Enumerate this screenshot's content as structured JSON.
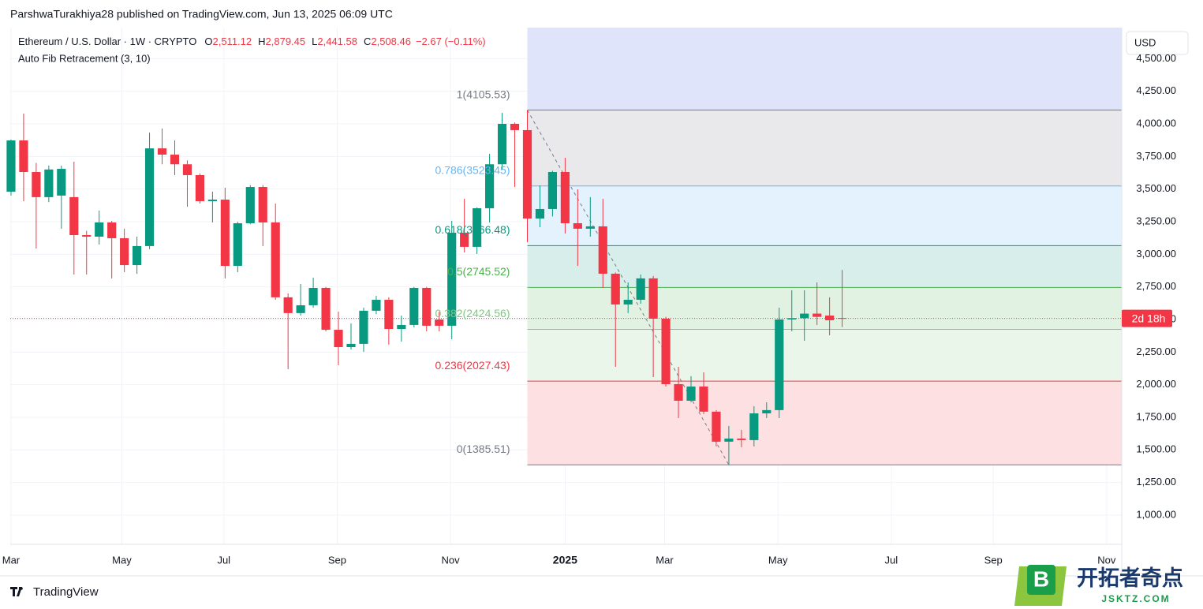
{
  "header": "ParshwaTurakhiya28 published on TradingView.com, Jun 13, 2025 06:09 UTC",
  "chart_data": {
    "type": "candlestick",
    "symbol": "Ethereum / U.S. Dollar · 1W · CRYPTO",
    "ohlc_legend": [
      {
        "key": "O",
        "value": "2,511.12"
      },
      {
        "key": "H",
        "value": "2,879.45"
      },
      {
        "key": "L",
        "value": "2,441.58"
      },
      {
        "key": "C",
        "value": "2,508.46"
      }
    ],
    "change": "−2.67 (−0.11%)",
    "indicator": "Auto Fib Retracement (3, 10)",
    "currency": "USD",
    "countdown": "2d 18h",
    "up_color": "#089981",
    "down_color": "#f23645",
    "grid": true,
    "xlim": [
      -0.06,
      88.2
    ],
    "ylim": [
      776,
      4738
    ],
    "yticks": [
      {
        "value": 1000,
        "label": "1,000.00"
      },
      {
        "value": 1250,
        "label": "1,250.00"
      },
      {
        "value": 1500,
        "label": "1,500.00"
      },
      {
        "value": 1750,
        "label": "1,750.00"
      },
      {
        "value": 2000,
        "label": "2,000.00"
      },
      {
        "value": 2250,
        "label": "2,250.00"
      },
      {
        "value": 2500,
        "label": "2,500.00"
      },
      {
        "value": 2750,
        "label": "2,750.00"
      },
      {
        "value": 3000,
        "label": "3,000.00"
      },
      {
        "value": 3250,
        "label": "3,250.00"
      },
      {
        "value": 3500,
        "label": "3,500.00"
      },
      {
        "value": 3750,
        "label": "3,750.00"
      },
      {
        "value": 4000,
        "label": "4,000.00"
      },
      {
        "value": 4250,
        "label": "4,250.00"
      },
      {
        "value": 4500,
        "label": "4,500.00"
      }
    ],
    "xticks": [
      {
        "value": 0,
        "label": "Mar"
      },
      {
        "value": 8.8,
        "label": "May"
      },
      {
        "value": 16.9,
        "label": "Jul"
      },
      {
        "value": 25.9,
        "label": "Sep"
      },
      {
        "value": 34.9,
        "label": "Nov"
      },
      {
        "value": 44,
        "label": "2025"
      },
      {
        "value": 51.9,
        "label": "Mar"
      },
      {
        "value": 60.9,
        "label": "May"
      },
      {
        "value": 69.9,
        "label": "Jul"
      },
      {
        "value": 78,
        "label": "Sep"
      },
      {
        "value": 87,
        "label": "Nov"
      }
    ],
    "candles": [
      {
        "o": 3480,
        "h": 3880,
        "l": 3450,
        "c": 3873
      },
      {
        "o": 3873,
        "h": 4079,
        "l": 3407,
        "c": 3631
      },
      {
        "o": 3631,
        "h": 3700,
        "l": 3044,
        "c": 3438
      },
      {
        "o": 3438,
        "h": 3680,
        "l": 3400,
        "c": 3650
      },
      {
        "o": 3450,
        "h": 3680,
        "l": 3196,
        "c": 3655
      },
      {
        "o": 3438,
        "h": 3710,
        "l": 2845,
        "c": 3147
      },
      {
        "o": 3147,
        "h": 3180,
        "l": 2845,
        "c": 3135
      },
      {
        "o": 3135,
        "h": 3335,
        "l": 3075,
        "c": 3244
      },
      {
        "o": 3244,
        "h": 3256,
        "l": 2815,
        "c": 3123
      },
      {
        "o": 3123,
        "h": 3196,
        "l": 2863,
        "c": 2917
      },
      {
        "o": 2917,
        "h": 3135,
        "l": 2850,
        "c": 3063
      },
      {
        "o": 3063,
        "h": 3933,
        "l": 3040,
        "c": 3812
      },
      {
        "o": 3812,
        "h": 3964,
        "l": 3690,
        "c": 3764
      },
      {
        "o": 3764,
        "h": 3873,
        "l": 3607,
        "c": 3690
      },
      {
        "o": 3690,
        "h": 3720,
        "l": 3365,
        "c": 3607
      },
      {
        "o": 3607,
        "h": 3620,
        "l": 3389,
        "c": 3407
      },
      {
        "o": 3407,
        "h": 3480,
        "l": 3244,
        "c": 3419
      },
      {
        "o": 3419,
        "h": 3510,
        "l": 2815,
        "c": 2911
      },
      {
        "o": 2911,
        "h": 3250,
        "l": 2863,
        "c": 3238
      },
      {
        "o": 3238,
        "h": 3530,
        "l": 3230,
        "c": 3516
      },
      {
        "o": 3516,
        "h": 3530,
        "l": 3063,
        "c": 3244
      },
      {
        "o": 3244,
        "h": 3389,
        "l": 2651,
        "c": 2670
      },
      {
        "o": 2670,
        "h": 2700,
        "l": 2119,
        "c": 2549
      },
      {
        "o": 2549,
        "h": 2772,
        "l": 2530,
        "c": 2609
      },
      {
        "o": 2609,
        "h": 2821,
        "l": 2590,
        "c": 2742
      },
      {
        "o": 2742,
        "h": 2750,
        "l": 2409,
        "c": 2421
      },
      {
        "o": 2421,
        "h": 2560,
        "l": 2149,
        "c": 2288
      },
      {
        "o": 2288,
        "h": 2470,
        "l": 2270,
        "c": 2313
      },
      {
        "o": 2313,
        "h": 2590,
        "l": 2252,
        "c": 2567
      },
      {
        "o": 2567,
        "h": 2681,
        "l": 2540,
        "c": 2651
      },
      {
        "o": 2651,
        "h": 2670,
        "l": 2307,
        "c": 2427
      },
      {
        "o": 2427,
        "h": 2530,
        "l": 2330,
        "c": 2458
      },
      {
        "o": 2458,
        "h": 2750,
        "l": 2440,
        "c": 2742
      },
      {
        "o": 2742,
        "h": 2750,
        "l": 2409,
        "c": 2452
      },
      {
        "o": 2500,
        "h": 2560,
        "l": 2409,
        "c": 2452
      },
      {
        "o": 2452,
        "h": 3256,
        "l": 2349,
        "c": 3165
      },
      {
        "o": 3165,
        "h": 3425,
        "l": 3014,
        "c": 3057
      },
      {
        "o": 3057,
        "h": 3360,
        "l": 3002,
        "c": 3353
      },
      {
        "o": 3353,
        "h": 3770,
        "l": 3244,
        "c": 3690
      },
      {
        "o": 3690,
        "h": 4085,
        "l": 3650,
        "c": 4000
      },
      {
        "o": 4000,
        "h": 4010,
        "l": 3516,
        "c": 3952
      },
      {
        "o": 3952,
        "h": 4105.53,
        "l": 3093,
        "c": 3274
      },
      {
        "o": 3274,
        "h": 3528,
        "l": 3208,
        "c": 3347
      },
      {
        "o": 3347,
        "h": 3640,
        "l": 3290,
        "c": 3631
      },
      {
        "o": 3631,
        "h": 3740,
        "l": 3159,
        "c": 3238
      },
      {
        "o": 3238,
        "h": 3498,
        "l": 2911,
        "c": 3196
      },
      {
        "o": 3196,
        "h": 3438,
        "l": 3135,
        "c": 3214
      },
      {
        "o": 3214,
        "h": 3425,
        "l": 2742,
        "c": 2851
      },
      {
        "o": 2851,
        "h": 2860,
        "l": 2137,
        "c": 2615
      },
      {
        "o": 2615,
        "h": 2784,
        "l": 2549,
        "c": 2651
      },
      {
        "o": 2651,
        "h": 2845,
        "l": 2621,
        "c": 2815
      },
      {
        "o": 2815,
        "h": 2833,
        "l": 2058,
        "c": 2506
      },
      {
        "o": 2506,
        "h": 2520,
        "l": 1986,
        "c": 2004
      },
      {
        "o": 2004,
        "h": 2137,
        "l": 1744,
        "c": 1877
      },
      {
        "o": 1877,
        "h": 2065,
        "l": 1865,
        "c": 1986
      },
      {
        "o": 1986,
        "h": 2095,
        "l": 1775,
        "c": 1793
      },
      {
        "o": 1793,
        "h": 1805,
        "l": 1527,
        "c": 1563
      },
      {
        "o": 1563,
        "h": 1684,
        "l": 1385.51,
        "c": 1587
      },
      {
        "o": 1587,
        "h": 1654,
        "l": 1521,
        "c": 1575
      },
      {
        "o": 1575,
        "h": 1835,
        "l": 1527,
        "c": 1780
      },
      {
        "o": 1780,
        "h": 1865,
        "l": 1744,
        "c": 1805
      },
      {
        "o": 1805,
        "h": 2591,
        "l": 1744,
        "c": 2500
      },
      {
        "o": 2500,
        "h": 2724,
        "l": 2409,
        "c": 2510
      },
      {
        "o": 2510,
        "h": 2724,
        "l": 2337,
        "c": 2545
      },
      {
        "o": 2545,
        "h": 2784,
        "l": 2458,
        "c": 2520
      },
      {
        "o": 2530,
        "h": 2670,
        "l": 2379,
        "c": 2494
      },
      {
        "o": 2511.12,
        "h": 2879.45,
        "l": 2441.58,
        "c": 2508.46
      }
    ],
    "fib_top_zone_color": "#dfe4fb",
    "fib_levels": [
      {
        "label": "1(4105.53)",
        "value": 4105.53,
        "color": "#787b86",
        "zone_color": "#e9e9ec"
      },
      {
        "label": "0.786(3523.45)",
        "value": 3523.45,
        "color": "#64b5f6",
        "zone_color": "#e4f2fd"
      },
      {
        "label": "0.618(3066.48)",
        "value": 3066.48,
        "color": "#089981",
        "zone_color": "#d8eeea"
      },
      {
        "label": "0.5(2745.52)",
        "value": 2745.52,
        "color": "#4caf50",
        "zone_color": "#e1f2e2"
      },
      {
        "label": "0.382(2424.56)",
        "value": 2424.56,
        "color": "#81c784",
        "zone_color": "#eaf6ea"
      },
      {
        "label": "0.236(2027.43)",
        "value": 2027.43,
        "color": "#f23645",
        "zone_color": "#fde1e2"
      },
      {
        "label": "0(1385.51)",
        "value": 1385.51,
        "color": "#787b86"
      }
    ]
  },
  "footer": {
    "brand": "TradingView"
  },
  "watermark": {
    "logo": "B",
    "name": "开拓者奇点",
    "site": "JSKTZ.COM"
  }
}
